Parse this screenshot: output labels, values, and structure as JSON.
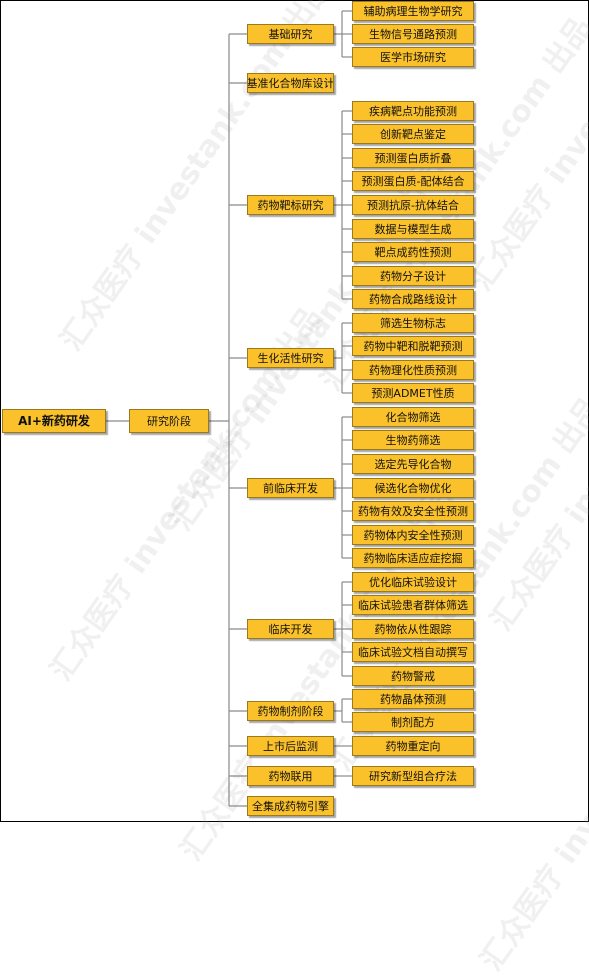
{
  "root": "AI+新药研发",
  "stage": "研究阶段",
  "categories": [
    {
      "label": "基础研究",
      "children": [
        "辅助病理生物学研究",
        "生物信号通路预测",
        "医学市场研究"
      ]
    },
    {
      "label": "基准化合物库设计",
      "children": []
    },
    {
      "label": "药物靶标研究",
      "children": [
        "疾病靶点功能预测",
        "创新靶点鉴定",
        "预测蛋白质折叠",
        "预测蛋白质-配体结合",
        "预测抗原-抗体结合",
        "数据与模型生成",
        "靶点成药性预测",
        "药物分子设计",
        "药物合成路线设计"
      ]
    },
    {
      "label": "生化活性研究",
      "children": [
        "筛选生物标志",
        "药物中靶和脱靶预测",
        "药物理化性质预测",
        "预测ADMET性质"
      ]
    },
    {
      "label": "前临床开发",
      "children": [
        "化合物筛选",
        "生物药筛选",
        "选定先导化合物",
        "候选化合物优化",
        "药物有效及安全性预测",
        "药物体内安全性预测",
        "药物临床适应症挖掘"
      ]
    },
    {
      "label": "临床开发",
      "children": [
        "优化临床试验设计",
        "临床试验患者群体筛选",
        "药物依从性跟踪",
        "临床试验文档自动撰写",
        "药物警戒"
      ]
    },
    {
      "label": "药物制剂阶段",
      "children": [
        "药物晶体预测",
        "制剂配方"
      ]
    },
    {
      "label": "上市后监测",
      "children": [
        "药物重定向"
      ]
    },
    {
      "label": "药物联用",
      "children": [
        "研究新型组合疗法"
      ]
    },
    {
      "label": "全集成药物引擎",
      "children": []
    }
  ],
  "watermark": "汇众医疗 investank.com 出品"
}
